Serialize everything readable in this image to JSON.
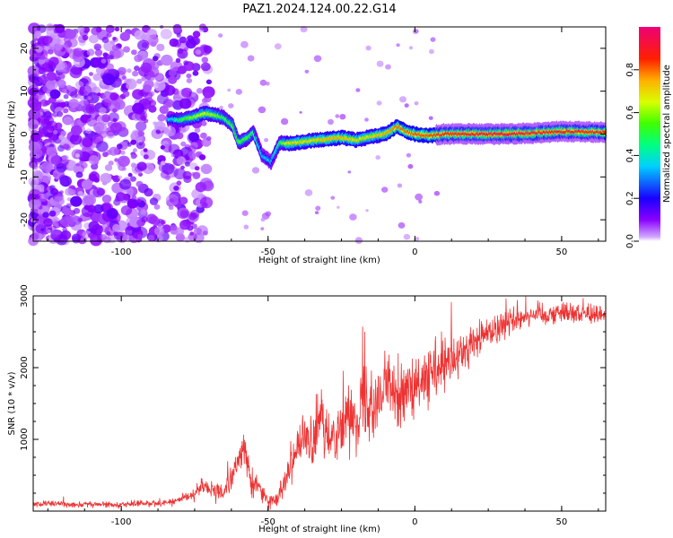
{
  "figure": {
    "title": "PAZ1.2024.124.00.22.G14"
  },
  "chart_data": [
    {
      "type": "heatmap",
      "xlabel": "Height of straight line (km)",
      "ylabel": "Frequency (Hz)",
      "xlim": [
        -130,
        65
      ],
      "ylim": [
        -25,
        25
      ],
      "xticks": [
        -100,
        -50,
        0,
        50
      ],
      "yticks": [
        -20,
        -10,
        0,
        10,
        20
      ],
      "ridge": {
        "x": [
          -83,
          -80,
          -75,
          -72,
          -68,
          -65,
          -62,
          -60,
          -57,
          -55,
          -52,
          -49,
          -46,
          -43,
          -40,
          -35,
          -30,
          -25,
          -20,
          -15,
          -10,
          -6,
          -3,
          0,
          5,
          10,
          20,
          30,
          40,
          50,
          65
        ],
        "freq": [
          3.5,
          3.2,
          4.0,
          4.8,
          4.5,
          3.8,
          2.0,
          -2.0,
          -1.0,
          0.5,
          -5.0,
          -6.5,
          -2.0,
          -2.2,
          -2.0,
          -1.5,
          -1.2,
          -0.8,
          -1.4,
          -0.6,
          0.0,
          1.8,
          0.6,
          0.0,
          -0.4,
          0.0,
          0.0,
          0.0,
          0.2,
          0.6,
          0.4
        ],
        "amp": [
          0.35,
          0.5,
          0.6,
          0.65,
          0.6,
          0.5,
          0.55,
          0.55,
          0.55,
          0.5,
          0.35,
          0.35,
          0.5,
          0.7,
          0.7,
          0.7,
          0.75,
          0.75,
          0.7,
          0.7,
          0.75,
          0.8,
          0.8,
          0.82,
          0.82,
          0.85,
          0.9,
          0.92,
          0.9,
          0.88,
          0.85
        ]
      },
      "colorbar": {
        "label": "Normalized spectral amplitude",
        "range": [
          0.0,
          1.0
        ],
        "ticks": [
          "0.0",
          "0.2",
          "0.4",
          "0.6",
          "0.8"
        ],
        "colormap": "gist_rainbow_r",
        "low_color": "#ffffff",
        "high_color": "#ee0077"
      }
    },
    {
      "type": "line",
      "xlabel": "Height of straight line (km)",
      "ylabel": "SNR (10 * v/v)",
      "xlim": [
        -130,
        65
      ],
      "ylim": [
        0,
        3000
      ],
      "xticks": [
        -100,
        -50,
        0,
        50
      ],
      "yticks": [
        1000,
        2000,
        3000
      ],
      "series": [
        {
          "color": "#ee3333",
          "x": [
            -130,
            -120,
            -110,
            -100,
            -90,
            -85,
            -80,
            -75,
            -72,
            -70,
            -68,
            -65,
            -62,
            -60,
            -58,
            -56,
            -54,
            -52,
            -50,
            -48,
            -46,
            -44,
            -42,
            -40,
            -38,
            -35,
            -32,
            -30,
            -28,
            -25,
            -22,
            -20,
            -18,
            -15,
            -12,
            -10,
            -8,
            -5,
            -2,
            0,
            3,
            6,
            10,
            15,
            20,
            25,
            30,
            35,
            40,
            45,
            50,
            55,
            60,
            65
          ],
          "y": [
            100,
            100,
            90,
            95,
            110,
            120,
            150,
            250,
            380,
            300,
            250,
            280,
            500,
            700,
            900,
            400,
            350,
            300,
            120,
            150,
            250,
            500,
            700,
            900,
            1000,
            900,
            1300,
            1000,
            1100,
            1200,
            1350,
            1300,
            1500,
            1550,
            1600,
            1700,
            1800,
            1600,
            1700,
            1650,
            1800,
            1900,
            2000,
            2150,
            2350,
            2500,
            2600,
            2700,
            2750,
            2750,
            2780,
            2760,
            2750,
            2750
          ],
          "noise": [
            30,
            30,
            30,
            30,
            35,
            35,
            40,
            70,
            90,
            80,
            80,
            100,
            150,
            200,
            200,
            150,
            130,
            110,
            60,
            70,
            100,
            150,
            200,
            250,
            250,
            250,
            300,
            250,
            250,
            300,
            300,
            300,
            350,
            350,
            350,
            350,
            350,
            300,
            300,
            300,
            300,
            300,
            280,
            250,
            200,
            180,
            150,
            130,
            120,
            110,
            100,
            100,
            100,
            100
          ]
        }
      ]
    }
  ]
}
